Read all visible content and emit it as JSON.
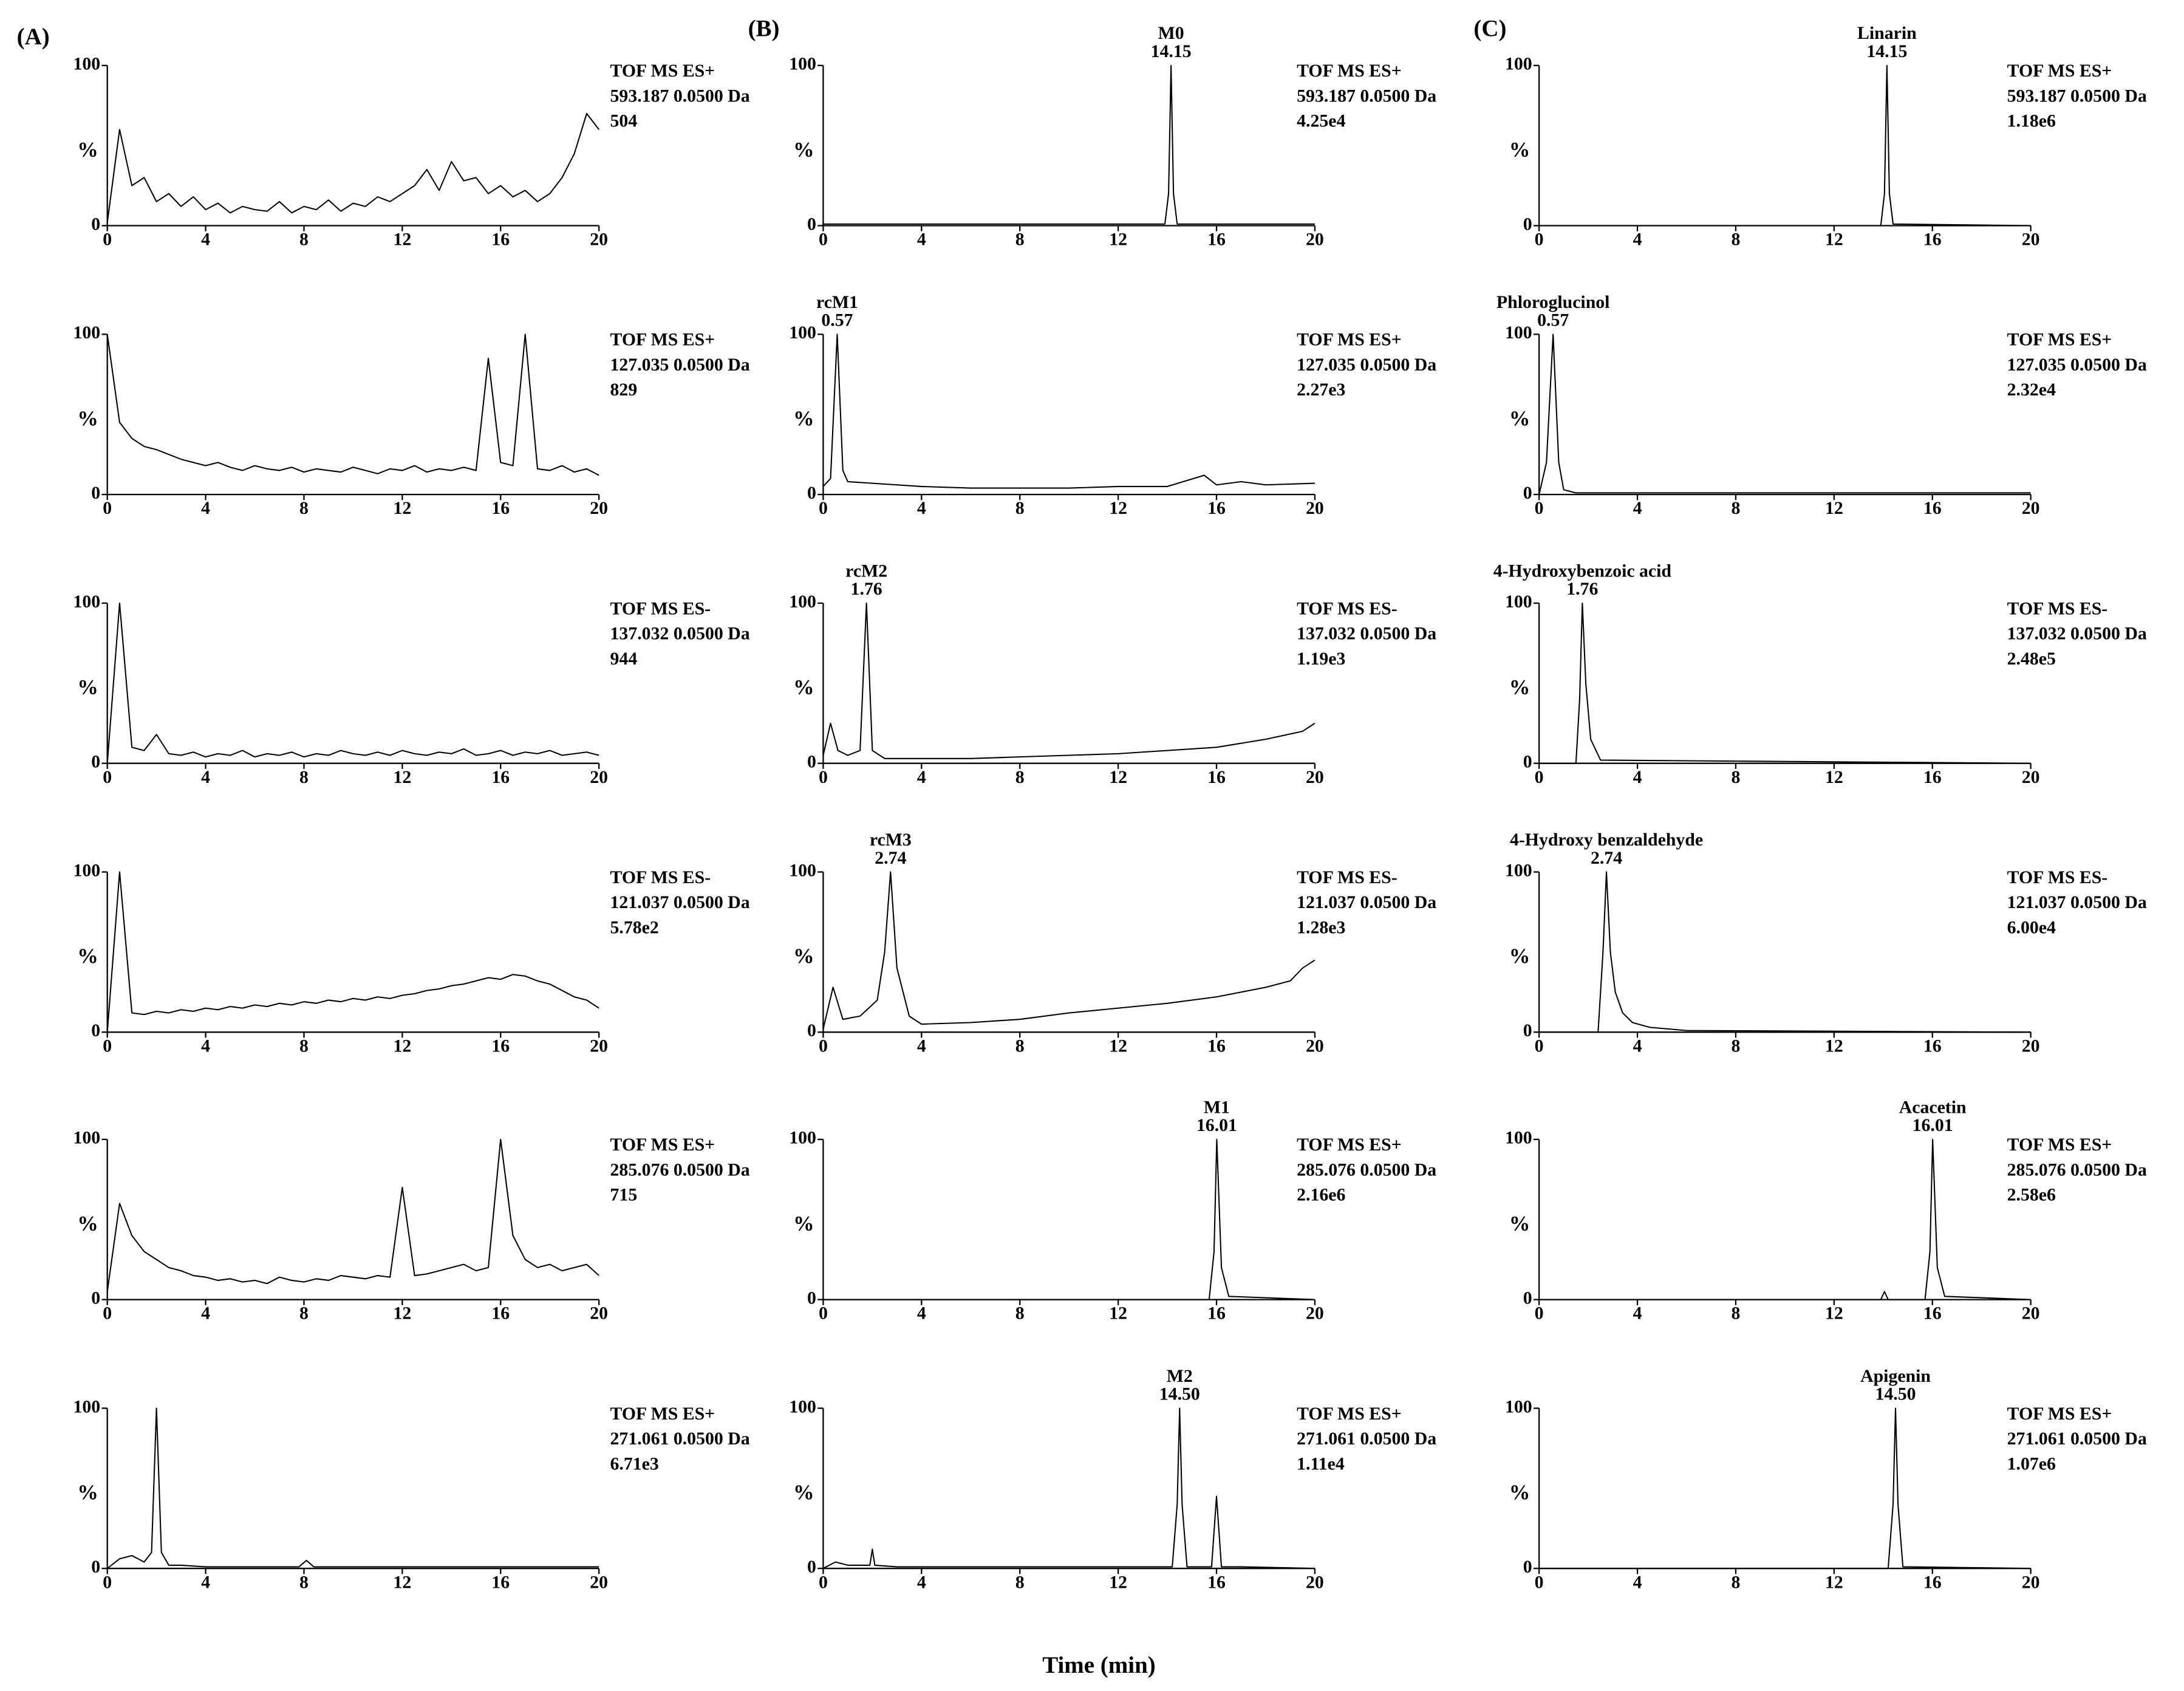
{
  "panel_labels": [
    "(A)",
    "(B)",
    "(C)"
  ],
  "x_label": "Time (min)",
  "chart_data": [
    {
      "type": "line",
      "ylabel": "%",
      "color": "#000000",
      "xlim": [
        0,
        20
      ],
      "xticks": [
        0,
        4,
        8,
        12,
        16,
        20
      ],
      "ylim": [
        0,
        100
      ],
      "yticks": [
        0,
        100
      ],
      "annotation": [
        "TOF MS ES+",
        "593.187 0.0500 Da",
        "504"
      ],
      "x": [
        0,
        0.5,
        1,
        1.5,
        2,
        2.5,
        3,
        3.5,
        4,
        4.5,
        5,
        5.5,
        6,
        6.5,
        7,
        7.5,
        8,
        8.5,
        9,
        9.5,
        10,
        10.5,
        11,
        11.5,
        12,
        12.5,
        13,
        13.5,
        14,
        14.5,
        15,
        15.5,
        16,
        16.5,
        17,
        17.5,
        18,
        18.5,
        19,
        19.5,
        20
      ],
      "values": [
        2,
        60,
        25,
        30,
        15,
        20,
        12,
        18,
        10,
        14,
        8,
        12,
        10,
        9,
        15,
        8,
        12,
        10,
        16,
        9,
        14,
        12,
        18,
        15,
        20,
        25,
        35,
        22,
        40,
        28,
        30,
        20,
        25,
        18,
        22,
        15,
        20,
        30,
        45,
        70,
        60
      ]
    },
    {
      "type": "line",
      "ylabel": "%",
      "color": "#000000",
      "xlim": [
        0,
        20
      ],
      "xticks": [
        0,
        4,
        8,
        12,
        16,
        20
      ],
      "ylim": [
        0,
        100
      ],
      "yticks": [
        0,
        100
      ],
      "annotation": [
        "TOF MS ES+",
        "127.035 0.0500 Da",
        "829"
      ],
      "x": [
        0,
        0.5,
        1,
        1.5,
        2,
        2.5,
        3,
        3.5,
        4,
        4.5,
        5,
        5.5,
        6,
        6.5,
        7,
        7.5,
        8,
        8.5,
        9,
        9.5,
        10,
        10.5,
        11,
        11.5,
        12,
        12.5,
        13,
        13.5,
        14,
        14.5,
        15,
        15.5,
        16,
        16.5,
        17,
        17.5,
        18,
        18.5,
        19,
        19.5,
        20
      ],
      "values": [
        100,
        45,
        35,
        30,
        28,
        25,
        22,
        20,
        18,
        20,
        17,
        15,
        18,
        16,
        15,
        17,
        14,
        16,
        15,
        14,
        17,
        15,
        13,
        16,
        15,
        18,
        14,
        16,
        15,
        17,
        15,
        85,
        20,
        18,
        100,
        16,
        15,
        18,
        14,
        16,
        12
      ]
    },
    {
      "type": "line",
      "ylabel": "%",
      "color": "#000000",
      "xlim": [
        0,
        20
      ],
      "xticks": [
        0,
        4,
        8,
        12,
        16,
        20
      ],
      "ylim": [
        0,
        100
      ],
      "yticks": [
        0,
        100
      ],
      "annotation": [
        "TOF MS ES-",
        "137.032 0.0500 Da",
        "944"
      ],
      "x": [
        0,
        0.5,
        1,
        1.5,
        2,
        2.5,
        3,
        3.5,
        4,
        4.5,
        5,
        5.5,
        6,
        6.5,
        7,
        7.5,
        8,
        8.5,
        9,
        9.5,
        10,
        10.5,
        11,
        11.5,
        12,
        12.5,
        13,
        13.5,
        14,
        14.5,
        15,
        15.5,
        16,
        16.5,
        17,
        17.5,
        18,
        18.5,
        19,
        19.5,
        20
      ],
      "values": [
        0,
        100,
        10,
        8,
        18,
        6,
        5,
        7,
        4,
        6,
        5,
        8,
        4,
        6,
        5,
        7,
        4,
        6,
        5,
        8,
        6,
        5,
        7,
        5,
        8,
        6,
        5,
        7,
        6,
        9,
        5,
        6,
        8,
        5,
        7,
        6,
        8,
        5,
        6,
        7,
        5
      ]
    },
    {
      "type": "line",
      "ylabel": "%",
      "color": "#000000",
      "xlim": [
        0,
        20
      ],
      "xticks": [
        0,
        4,
        8,
        12,
        16,
        20
      ],
      "ylim": [
        0,
        100
      ],
      "yticks": [
        0,
        100
      ],
      "annotation": [
        "TOF MS ES-",
        "121.037 0.0500 Da",
        "5.78e2"
      ],
      "x": [
        0,
        0.5,
        1,
        1.5,
        2,
        2.5,
        3,
        3.5,
        4,
        4.5,
        5,
        5.5,
        6,
        6.5,
        7,
        7.5,
        8,
        8.5,
        9,
        9.5,
        10,
        10.5,
        11,
        11.5,
        12,
        12.5,
        13,
        13.5,
        14,
        14.5,
        15,
        15.5,
        16,
        16.5,
        17,
        17.5,
        18,
        18.5,
        19,
        19.5,
        20
      ],
      "values": [
        0,
        100,
        12,
        11,
        13,
        12,
        14,
        13,
        15,
        14,
        16,
        15,
        17,
        16,
        18,
        17,
        19,
        18,
        20,
        19,
        21,
        20,
        22,
        21,
        23,
        24,
        26,
        27,
        29,
        30,
        32,
        34,
        33,
        36,
        35,
        32,
        30,
        26,
        22,
        20,
        15
      ]
    },
    {
      "type": "line",
      "ylabel": "%",
      "color": "#000000",
      "xlim": [
        0,
        20
      ],
      "xticks": [
        0,
        4,
        8,
        12,
        16,
        20
      ],
      "ylim": [
        0,
        100
      ],
      "yticks": [
        0,
        100
      ],
      "annotation": [
        "TOF MS ES+",
        "285.076 0.0500 Da",
        "715"
      ],
      "x": [
        0,
        0.5,
        1,
        1.5,
        2,
        2.5,
        3,
        3.5,
        4,
        4.5,
        5,
        5.5,
        6,
        6.5,
        7,
        7.5,
        8,
        8.5,
        9,
        9.5,
        10,
        10.5,
        11,
        11.5,
        12,
        12.5,
        13,
        13.5,
        14,
        14.5,
        15,
        15.5,
        16,
        16.5,
        17,
        17.5,
        18,
        18.5,
        19,
        19.5,
        20
      ],
      "values": [
        5,
        60,
        40,
        30,
        25,
        20,
        18,
        15,
        14,
        12,
        13,
        11,
        12,
        10,
        14,
        12,
        11,
        13,
        12,
        15,
        14,
        13,
        15,
        14,
        70,
        15,
        16,
        18,
        20,
        22,
        18,
        20,
        100,
        40,
        25,
        20,
        22,
        18,
        20,
        22,
        15
      ]
    },
    {
      "type": "line",
      "ylabel": "%",
      "color": "#000000",
      "xlim": [
        0,
        20
      ],
      "xticks": [
        0,
        4,
        8,
        12,
        16,
        20
      ],
      "ylim": [
        0,
        100
      ],
      "yticks": [
        0,
        100
      ],
      "annotation": [
        "TOF MS ES+",
        "271.061 0.0500 Da",
        "6.71e3"
      ],
      "x": [
        0,
        0.5,
        1,
        1.5,
        1.8,
        2,
        2.2,
        2.5,
        3,
        4,
        6,
        7.8,
        8.1,
        8.4,
        10,
        12,
        14,
        16,
        18,
        20
      ],
      "values": [
        0,
        6,
        8,
        4,
        10,
        100,
        10,
        2,
        2,
        1,
        1,
        1,
        5,
        1,
        1,
        1,
        1,
        1,
        1,
        1
      ]
    },
    {
      "type": "line",
      "ylabel": "%",
      "color": "#000000",
      "xlim": [
        0,
        20
      ],
      "xticks": [
        0,
        4,
        8,
        12,
        16,
        20
      ],
      "ylim": [
        0,
        100
      ],
      "yticks": [
        0,
        100
      ],
      "annotation": [
        "TOF MS ES+",
        "593.187 0.0500 Da",
        "4.25e4"
      ],
      "peak_name": "M0",
      "peak_time": "14.15",
      "x": [
        0,
        1,
        13.9,
        14.05,
        14.15,
        14.25,
        14.4,
        20
      ],
      "values": [
        1,
        1,
        1,
        20,
        100,
        20,
        1,
        1
      ]
    },
    {
      "type": "line",
      "ylabel": "%",
      "color": "#000000",
      "xlim": [
        0,
        20
      ],
      "xticks": [
        0,
        4,
        8,
        12,
        16,
        20
      ],
      "ylim": [
        0,
        100
      ],
      "yticks": [
        0,
        100
      ],
      "annotation": [
        "TOF MS ES+",
        "127.035 0.0500 Da",
        "2.27e3"
      ],
      "peak_name": "rcM1",
      "peak_time": "0.57",
      "x": [
        0,
        0.3,
        0.57,
        0.8,
        1,
        2,
        4,
        6,
        8,
        10,
        12,
        14,
        15.5,
        16,
        17,
        18,
        20
      ],
      "values": [
        5,
        10,
        100,
        15,
        8,
        7,
        5,
        4,
        4,
        4,
        5,
        5,
        12,
        6,
        8,
        6,
        7
      ]
    },
    {
      "type": "line",
      "ylabel": "%",
      "color": "#000000",
      "xlim": [
        0,
        20
      ],
      "xticks": [
        0,
        4,
        8,
        12,
        16,
        20
      ],
      "ylim": [
        0,
        100
      ],
      "yticks": [
        0,
        100
      ],
      "annotation": [
        "TOF MS ES-",
        "137.032 0.0500 Da",
        "1.19e3"
      ],
      "peak_name": "rcM2",
      "peak_time": "1.76",
      "x": [
        0,
        0.3,
        0.6,
        1,
        1.5,
        1.76,
        2,
        2.5,
        4,
        6,
        8,
        10,
        12,
        14,
        16,
        18,
        19.5,
        20
      ],
      "values": [
        5,
        25,
        8,
        5,
        8,
        100,
        8,
        3,
        3,
        3,
        4,
        5,
        6,
        8,
        10,
        15,
        20,
        25
      ]
    },
    {
      "type": "line",
      "ylabel": "%",
      "color": "#000000",
      "xlim": [
        0,
        20
      ],
      "xticks": [
        0,
        4,
        8,
        12,
        16,
        20
      ],
      "ylim": [
        0,
        100
      ],
      "yticks": [
        0,
        100
      ],
      "annotation": [
        "TOF MS ES-",
        "121.037 0.0500 Da",
        "1.28e3"
      ],
      "peak_name": "rcM3",
      "peak_time": "2.74",
      "x": [
        0,
        0.4,
        0.8,
        1.5,
        2.2,
        2.5,
        2.74,
        3,
        3.5,
        4,
        6,
        8,
        10,
        12,
        14,
        16,
        17,
        18,
        19,
        19.5,
        20
      ],
      "values": [
        2,
        28,
        8,
        10,
        20,
        50,
        100,
        40,
        10,
        5,
        6,
        8,
        12,
        15,
        18,
        22,
        25,
        28,
        32,
        40,
        45
      ]
    },
    {
      "type": "line",
      "ylabel": "%",
      "color": "#000000",
      "xlim": [
        0,
        20
      ],
      "xticks": [
        0,
        4,
        8,
        12,
        16,
        20
      ],
      "ylim": [
        0,
        100
      ],
      "yticks": [
        0,
        100
      ],
      "annotation": [
        "TOF MS ES+",
        "285.076 0.0500 Da",
        "2.16e6"
      ],
      "peak_name": "M1",
      "peak_time": "16.01",
      "x": [
        0,
        15.7,
        15.9,
        16.01,
        16.2,
        16.5,
        20
      ],
      "values": [
        0,
        0,
        30,
        100,
        20,
        2,
        0
      ]
    },
    {
      "type": "line",
      "ylabel": "%",
      "color": "#000000",
      "xlim": [
        0,
        20
      ],
      "xticks": [
        0,
        4,
        8,
        12,
        16,
        20
      ],
      "ylim": [
        0,
        100
      ],
      "yticks": [
        0,
        100
      ],
      "annotation": [
        "TOF MS ES+",
        "271.061 0.0500 Da",
        "1.11e4"
      ],
      "peak_name": "M2",
      "peak_time": "14.50",
      "x": [
        0,
        0.5,
        1,
        1.9,
        2,
        2.1,
        3,
        8,
        14.2,
        14.4,
        14.5,
        14.6,
        14.8,
        15.8,
        16,
        16.2,
        17,
        20
      ],
      "values": [
        0,
        4,
        2,
        2,
        12,
        2,
        1,
        1,
        1,
        40,
        100,
        40,
        1,
        1,
        45,
        1,
        1,
        0
      ]
    },
    {
      "type": "line",
      "ylabel": "%",
      "color": "#000000",
      "xlim": [
        0,
        20
      ],
      "xticks": [
        0,
        4,
        8,
        12,
        16,
        20
      ],
      "ylim": [
        0,
        100
      ],
      "yticks": [
        0,
        100
      ],
      "annotation": [
        "TOF MS ES+",
        "593.187 0.0500 Da",
        "1.18e6"
      ],
      "peak_name": "Linarin",
      "peak_time": "14.15",
      "x": [
        0,
        1,
        13.9,
        14.05,
        14.15,
        14.25,
        14.4,
        20
      ],
      "values": [
        0,
        0,
        0,
        20,
        100,
        20,
        1,
        0
      ]
    },
    {
      "type": "line",
      "ylabel": "%",
      "color": "#000000",
      "xlim": [
        0,
        20
      ],
      "xticks": [
        0,
        4,
        8,
        12,
        16,
        20
      ],
      "ylim": [
        0,
        100
      ],
      "yticks": [
        0,
        100
      ],
      "annotation": [
        "TOF MS ES+",
        "127.035 0.0500 Da",
        "2.32e4"
      ],
      "peak_name": "Phloroglucinol",
      "peak_time": "0.57",
      "x": [
        0,
        0.3,
        0.57,
        0.8,
        1,
        1.5,
        20
      ],
      "values": [
        0,
        20,
        100,
        20,
        3,
        1,
        1
      ]
    },
    {
      "type": "line",
      "ylabel": "%",
      "color": "#000000",
      "xlim": [
        0,
        20
      ],
      "xticks": [
        0,
        4,
        8,
        12,
        16,
        20
      ],
      "ylim": [
        0,
        100
      ],
      "yticks": [
        0,
        100
      ],
      "annotation": [
        "TOF MS ES-",
        "137.032 0.0500 Da",
        "2.48e5"
      ],
      "peak_name": "4-Hydroxybenzoic acid",
      "peak_time": "1.76",
      "x": [
        0,
        1.5,
        1.65,
        1.76,
        1.9,
        2.1,
        2.5,
        20
      ],
      "values": [
        0,
        0,
        40,
        100,
        50,
        15,
        2,
        0
      ]
    },
    {
      "type": "line",
      "ylabel": "%",
      "color": "#000000",
      "xlim": [
        0,
        20
      ],
      "xticks": [
        0,
        4,
        8,
        12,
        16,
        20
      ],
      "ylim": [
        0,
        100
      ],
      "yticks": [
        0,
        100
      ],
      "annotation": [
        "TOF MS ES-",
        "121.037 0.0500 Da",
        "6.00e4"
      ],
      "peak_name": "4-Hydroxy benzaldehyde",
      "peak_time": "2.74",
      "x": [
        0,
        2.4,
        2.6,
        2.74,
        2.9,
        3.1,
        3.4,
        3.8,
        4.5,
        6,
        20
      ],
      "values": [
        0,
        0,
        50,
        100,
        50,
        25,
        12,
        6,
        3,
        1,
        0
      ]
    },
    {
      "type": "line",
      "ylabel": "%",
      "color": "#000000",
      "xlim": [
        0,
        20
      ],
      "xticks": [
        0,
        4,
        8,
        12,
        16,
        20
      ],
      "ylim": [
        0,
        100
      ],
      "yticks": [
        0,
        100
      ],
      "annotation": [
        "TOF MS ES+",
        "285.076 0.0500 Da",
        "2.58e6"
      ],
      "peak_name": "Acacetin",
      "peak_time": "16.01",
      "x": [
        0,
        13.9,
        14.05,
        14.2,
        15.7,
        15.9,
        16.01,
        16.2,
        16.5,
        20
      ],
      "values": [
        0,
        0,
        5,
        0,
        0,
        30,
        100,
        20,
        2,
        0
      ]
    },
    {
      "type": "line",
      "ylabel": "%",
      "color": "#000000",
      "xlim": [
        0,
        20
      ],
      "xticks": [
        0,
        4,
        8,
        12,
        16,
        20
      ],
      "ylim": [
        0,
        100
      ],
      "yticks": [
        0,
        100
      ],
      "annotation": [
        "TOF MS ES+",
        "271.061 0.0500 Da",
        "1.07e6"
      ],
      "peak_name": "Apigenin",
      "peak_time": "14.50",
      "x": [
        0,
        14.2,
        14.4,
        14.5,
        14.6,
        14.8,
        20
      ],
      "values": [
        0,
        0,
        40,
        100,
        40,
        1,
        0
      ]
    }
  ]
}
